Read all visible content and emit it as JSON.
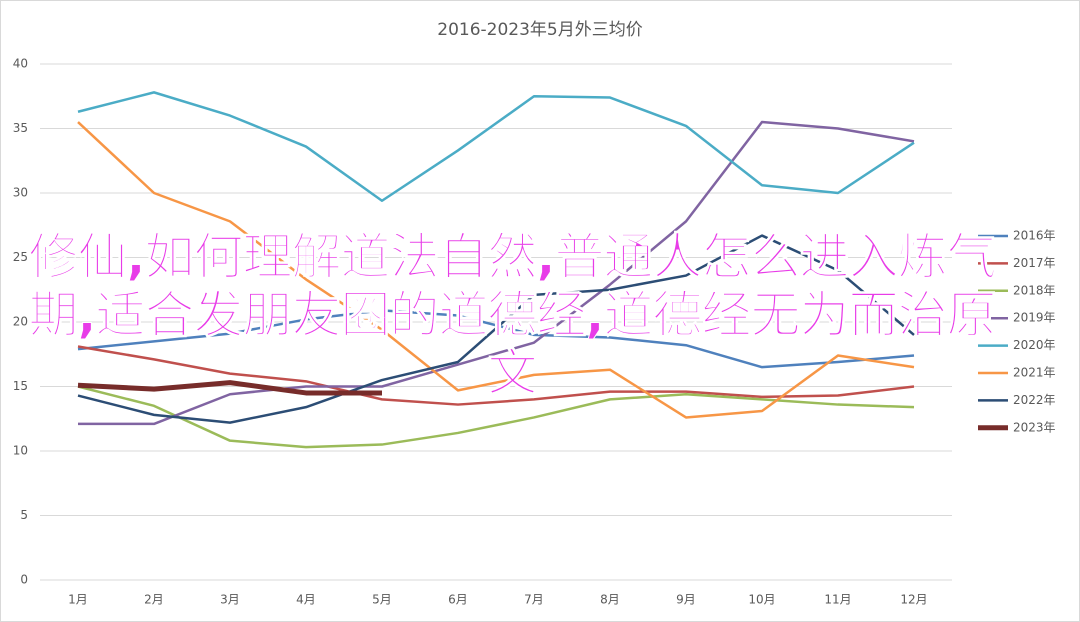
{
  "chart_data": {
    "type": "line",
    "title": "2016-2023年5月外三均价",
    "categories": [
      "1月",
      "2月",
      "3月",
      "4月",
      "5月",
      "6月",
      "7月",
      "8月",
      "9月",
      "10月",
      "11月",
      "12月"
    ],
    "series": [
      {
        "name": "2016年",
        "color": "#4f81bd",
        "values": [
          17.9,
          18.5,
          19.1,
          20.2,
          20.9,
          20.5,
          19.0,
          18.8,
          18.2,
          16.5,
          16.9,
          17.4
        ]
      },
      {
        "name": "2017年",
        "color": "#c0504d",
        "values": [
          18.1,
          17.1,
          16.0,
          15.4,
          14.0,
          13.6,
          14.0,
          14.6,
          14.6,
          14.2,
          14.3,
          15.0
        ]
      },
      {
        "name": "2018年",
        "color": "#9bbb59",
        "values": [
          15.0,
          13.5,
          10.8,
          10.3,
          10.5,
          11.4,
          12.6,
          14.0,
          14.4,
          14.0,
          13.6,
          13.4
        ]
      },
      {
        "name": "2019年",
        "color": "#8064a2",
        "values": [
          12.1,
          12.1,
          14.4,
          15.0,
          15.0,
          16.7,
          18.4,
          22.9,
          27.8,
          35.5,
          35.0,
          34.0
        ]
      },
      {
        "name": "2020年",
        "color": "#4bacc6",
        "values": [
          36.3,
          37.8,
          36.0,
          33.6,
          29.4,
          33.3,
          37.5,
          37.4,
          35.2,
          30.6,
          30.0,
          33.9
        ]
      },
      {
        "name": "2021年",
        "color": "#f79646",
        "values": [
          35.5,
          30.0,
          27.8,
          23.3,
          19.4,
          14.7,
          15.9,
          16.3,
          12.6,
          13.1,
          17.4,
          16.5
        ]
      },
      {
        "name": "2022年",
        "color": "#2c4d75",
        "values": [
          14.3,
          12.8,
          12.2,
          13.4,
          15.5,
          16.9,
          22.1,
          22.5,
          23.6,
          26.7,
          24.0,
          19.0
        ]
      },
      {
        "name": "2023年",
        "color": "#772c2a",
        "values": [
          15.1,
          14.8,
          15.3,
          14.5,
          14.5,
          null,
          null,
          null,
          null,
          null,
          null,
          null
        ]
      }
    ],
    "ylim": [
      0,
      40
    ],
    "yticks": [
      0,
      5,
      10,
      15,
      20,
      25,
      30,
      35,
      40
    ],
    "grid": true,
    "legend": "right",
    "overlay_text": "修仙,如何理解道法自然,普通人怎么进入炼气期,适合发朋友圈的道德经,道德经无为而治原文"
  }
}
